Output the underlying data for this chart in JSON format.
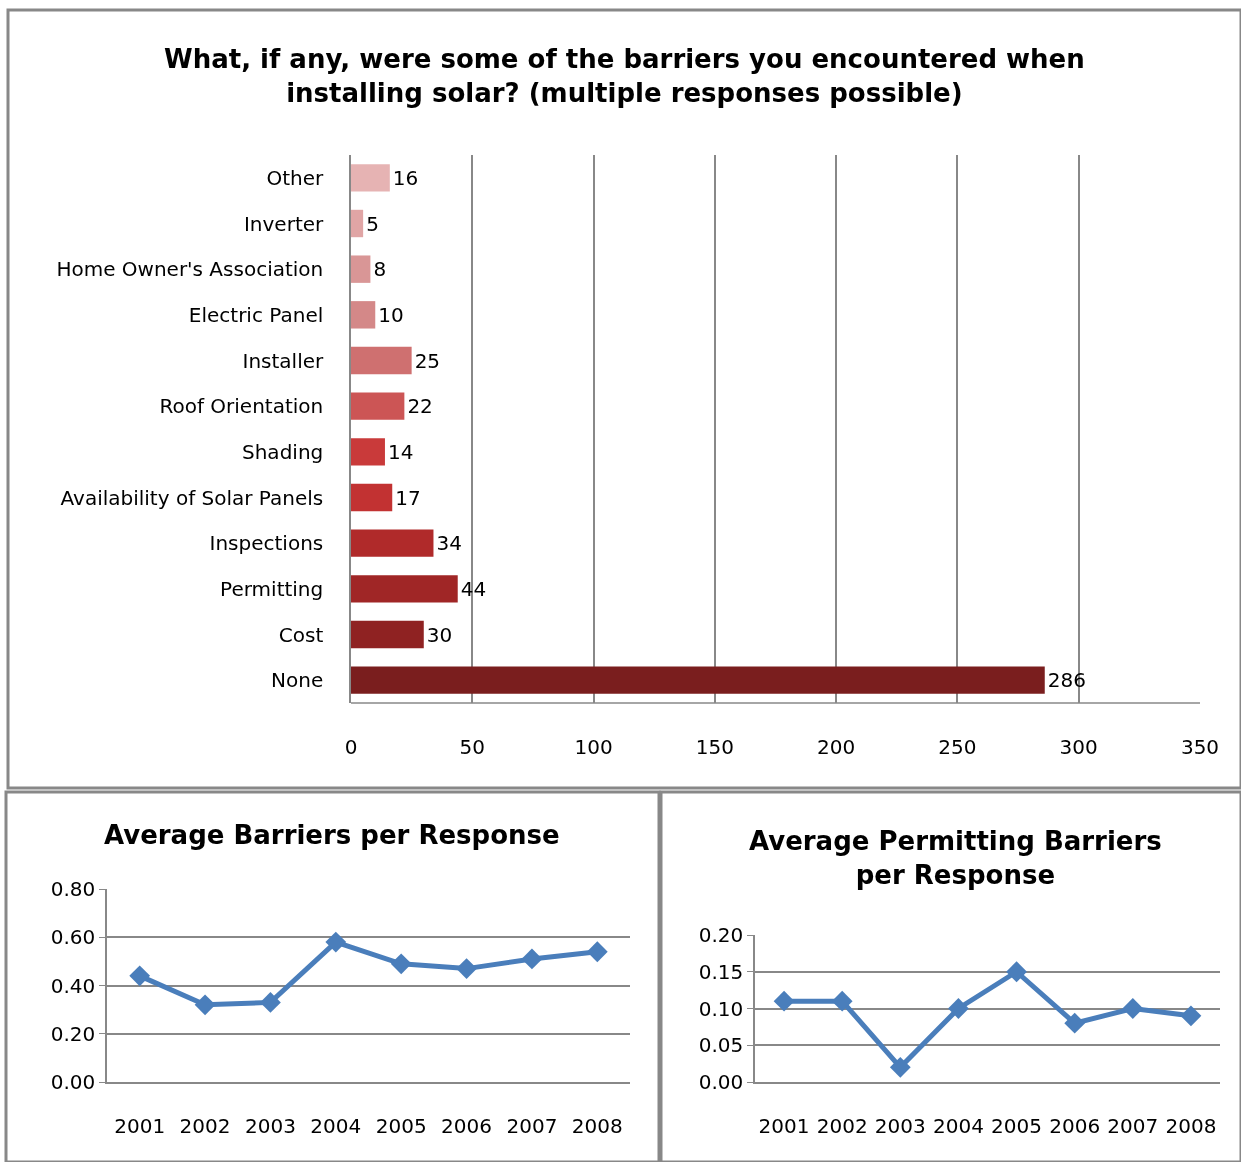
{
  "chart_data": [
    {
      "type": "bar",
      "orientation": "horizontal",
      "title": "What, if any, were some of the barriers you encountered when installing solar? (multiple responses possible)",
      "categories": [
        "Other",
        "Inverter",
        "Home Owner's Association",
        "Electric Panel",
        "Installer",
        "Roof Orientation",
        "Shading",
        "Availability of Solar Panels",
        "Inspections",
        "Permitting",
        "Cost",
        "None"
      ],
      "values": [
        16,
        5,
        8,
        10,
        25,
        22,
        14,
        17,
        34,
        44,
        30,
        286
      ],
      "colors": [
        "#e6b3b3",
        "#e0a5a5",
        "#d99696",
        "#d48888",
        "#cf7070",
        "#cc5555",
        "#c93a3a",
        "#c23232",
        "#b02a2a",
        "#a02626",
        "#8f2222",
        "#7a1e1e"
      ],
      "xlim": [
        0,
        350
      ],
      "xticks": [
        0,
        50,
        100,
        150,
        200,
        250,
        300,
        350
      ],
      "grid": "x",
      "data_labels": true
    },
    {
      "type": "line",
      "title": "Average Barriers per Response",
      "categories": [
        "2001",
        "2002",
        "2003",
        "2004",
        "2005",
        "2006",
        "2007",
        "2008"
      ],
      "series": [
        {
          "color": "#4a7ebb",
          "values": [
            0.44,
            0.32,
            0.33,
            0.58,
            0.49,
            0.47,
            0.51,
            0.54
          ]
        }
      ],
      "ylim": [
        0,
        0.8
      ],
      "yticks": [
        {
          "value": 0,
          "label": "0.00"
        },
        {
          "value": 0.2,
          "label": "0.20"
        },
        {
          "value": 0.4,
          "label": "0.40"
        },
        {
          "value": 0.6,
          "label": "0.60"
        },
        {
          "value": 0.8,
          "label": "0.80"
        }
      ],
      "grid": "y",
      "marker": "diamond"
    },
    {
      "type": "line",
      "title": "Average Permitting Barriers per Response",
      "categories": [
        "2001",
        "2002",
        "2003",
        "2004",
        "2005",
        "2006",
        "2007",
        "2008"
      ],
      "series": [
        {
          "color": "#4a7ebb",
          "values": [
            0.11,
            0.11,
            0.02,
            0.1,
            0.15,
            0.08,
            0.1,
            0.09
          ]
        }
      ],
      "ylim": [
        0,
        0.2
      ],
      "yticks": [
        {
          "value": 0,
          "label": "0.00"
        },
        {
          "value": 0.05,
          "label": "0.05"
        },
        {
          "value": 0.1,
          "label": "0.10"
        },
        {
          "value": 0.15,
          "label": "0.15"
        },
        {
          "value": 0.2,
          "label": "0.20"
        }
      ],
      "grid": "y",
      "marker": "diamond"
    }
  ]
}
